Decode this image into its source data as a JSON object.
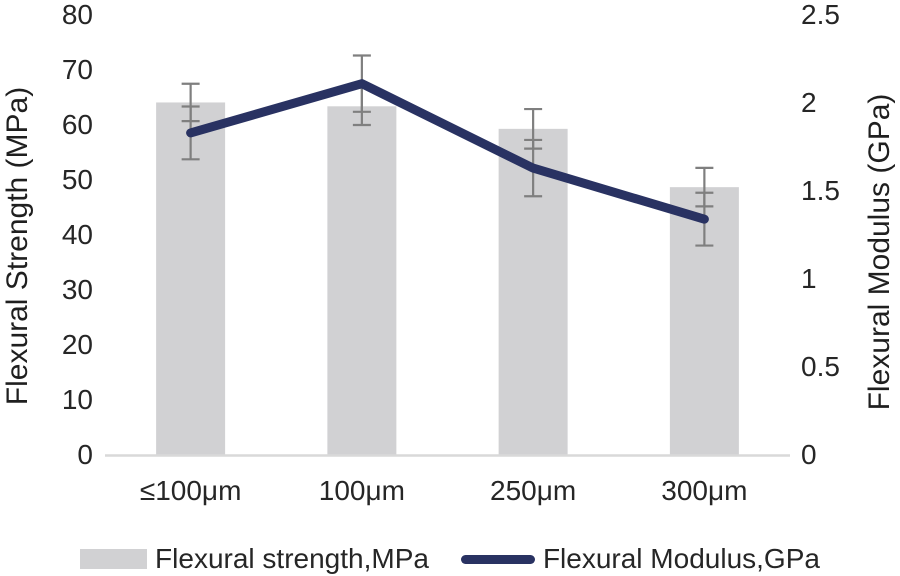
{
  "chart_data": {
    "type": "bar",
    "subtype": "combo-bar-line-dual-axis",
    "categories": [
      "≤100μm",
      "100μm",
      "250μm",
      "300μm"
    ],
    "series": [
      {
        "name": "Flexural strength,MPa",
        "kind": "bar",
        "axis": "left",
        "values": [
          64.1,
          63.4,
          59.3,
          48.7
        ],
        "errors": [
          3.4,
          3.4,
          3.6,
          3.5
        ],
        "color": "#d1d1d3"
      },
      {
        "name": "Flexural Modulus,GPa",
        "kind": "line",
        "axis": "right",
        "values": [
          1.83,
          2.11,
          1.63,
          1.34
        ],
        "errors": [
          0.15,
          0.16,
          0.16,
          0.15
        ],
        "color": "#293262"
      }
    ],
    "left_axis": {
      "label": "Flexural Strength (MPa)",
      "min": 0,
      "max": 80,
      "ticks": [
        "0",
        "10",
        "20",
        "30",
        "40",
        "50",
        "60",
        "70",
        "80"
      ]
    },
    "right_axis": {
      "label": "Flexural Modulus (GPa)",
      "min": 0,
      "max": 2.5,
      "ticks": [
        "0",
        "0.5",
        "1",
        "1.5",
        "2",
        "2.5"
      ]
    },
    "grid": false,
    "legend_position": "bottom",
    "styles": {
      "error_bar_color": "#7f7f7f",
      "axis_line_color": "#d9d9d9",
      "text_color": "#262626"
    }
  },
  "legend": {
    "bar_label": "Flexural strength,MPa",
    "line_label": "Flexural Modulus,GPa"
  }
}
